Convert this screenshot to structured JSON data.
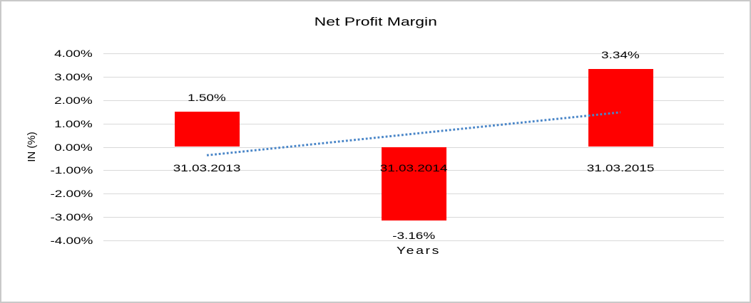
{
  "chart_data": {
    "type": "bar",
    "title": "Net Profit Margin",
    "xlabel": "Years",
    "ylabel": "IN (%)",
    "categories": [
      "31.03.2013",
      "31.03.2014",
      "31.03.2015"
    ],
    "values": [
      1.5,
      -3.16,
      3.34
    ],
    "value_labels": [
      "1.50%",
      "-3.16%",
      "3.34%"
    ],
    "y_ticks": [
      "4.00%",
      "3.00%",
      "2.00%",
      "1.00%",
      "0.00%",
      "-1.00%",
      "-2.00%",
      "-3.00%",
      "-4.00%"
    ],
    "y_tick_values": [
      4,
      3,
      2,
      1,
      0,
      -1,
      -2,
      -3,
      -4
    ],
    "ylim": [
      -4,
      4
    ],
    "grid": "horizontal-only",
    "legend": "none",
    "bar_color": "#FF0000",
    "gridline_color": "#D9D9D9",
    "background_color": "#FFFFFF",
    "text_color": "#000000",
    "trendline": {
      "type": "linear",
      "style": "dotted",
      "color": "#4A86C8",
      "start_value": -0.36,
      "end_value": 1.48
    }
  }
}
